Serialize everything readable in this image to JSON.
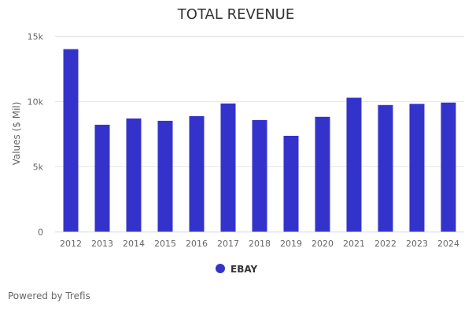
{
  "chart_data": {
    "type": "bar",
    "title": "TOTAL REVENUE",
    "xlabel": "",
    "ylabel": "Values ($ Mil)",
    "categories": [
      "2012",
      "2013",
      "2014",
      "2015",
      "2016",
      "2017",
      "2018",
      "2019",
      "2020",
      "2021",
      "2022",
      "2023",
      "2024"
    ],
    "series": [
      {
        "name": "EBAY",
        "color": "#3333cc",
        "values": [
          14000,
          8200,
          8680,
          8500,
          8860,
          9830,
          8560,
          7350,
          8810,
          10270,
          9710,
          9800,
          9900
        ]
      }
    ],
    "ylim": [
      0,
      15000
    ],
    "yticks": [
      0,
      5000,
      10000,
      15000
    ],
    "ytick_labels": [
      "0",
      "5k",
      "10k",
      "15k"
    ],
    "grid": true,
    "legend": "bottom-center"
  },
  "footer": {
    "credit": "Powered by Trefis"
  }
}
